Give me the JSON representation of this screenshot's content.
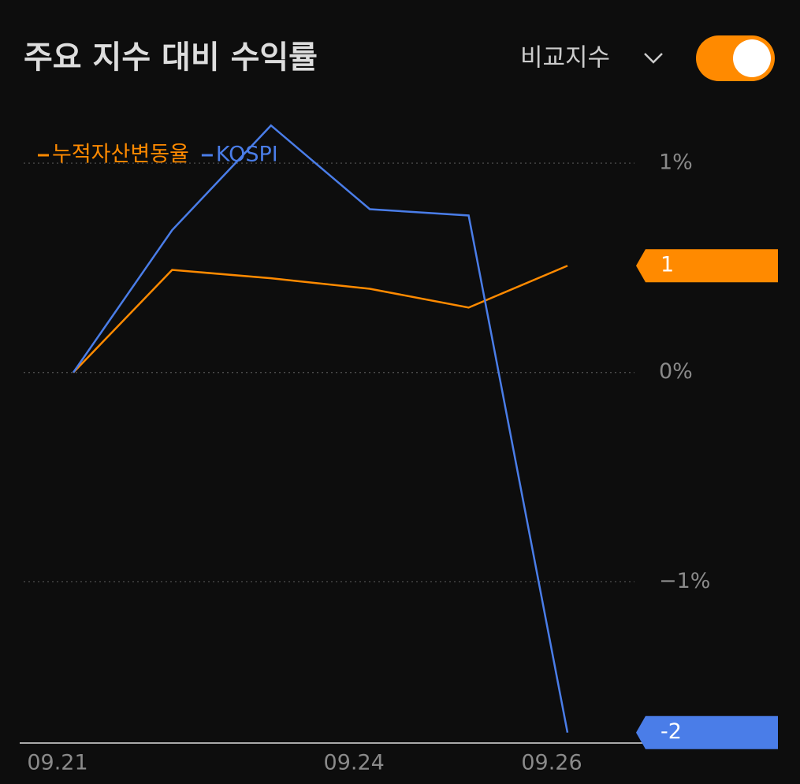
{
  "header": {
    "title": "주요 지수 대비 수익률",
    "compare_label": "비교지수"
  },
  "chart_data": {
    "type": "line",
    "categories": [
      "09.21",
      null,
      null,
      "09.24",
      null,
      "09.26"
    ],
    "series": [
      {
        "name": "누적자산변동율",
        "color": "#ff8a00",
        "values": [
          0,
          0.49,
          0.45,
          0.4,
          0.31,
          0.51
        ],
        "value_labels": [
          null,
          null,
          null,
          null,
          null,
          "1"
        ]
      },
      {
        "name": "KOSPI",
        "color": "#4a7de8",
        "values": [
          0,
          0.68,
          1.18,
          0.78,
          0.75,
          -1.72
        ],
        "value_labels": [
          null,
          null,
          null,
          null,
          null,
          "-2"
        ]
      }
    ],
    "ylim": [
      -1.77,
      1.29
    ],
    "yticks": [
      {
        "value": 1,
        "label": "1%"
      },
      {
        "value": 0,
        "label": "0%"
      },
      {
        "value": -1,
        "label": "−1%"
      }
    ],
    "grid": true
  }
}
